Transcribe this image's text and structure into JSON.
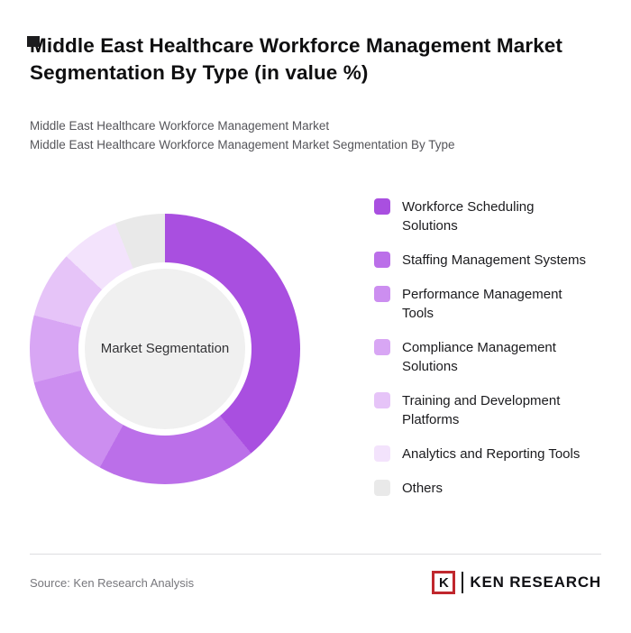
{
  "page": {
    "title": "Middle East Healthcare Workforce Management Market Segmentation By Type (in value %)",
    "subtitle1": "Middle East Healthcare Workforce Management Market",
    "subtitle2": "Middle East Healthcare Workforce Management Market Segmentation By Type",
    "source": "Source: Ken Research Analysis",
    "brand": {
      "logo_letter": "K",
      "name": "KEN RESEARCH",
      "accent_color": "#c0272d"
    }
  },
  "chart_data": {
    "type": "pie",
    "title": "Middle East Healthcare Workforce Management Market Segmentation By Type (in value %)",
    "unit": "value %",
    "center_label": "Market Segmentation",
    "legend_position": "right",
    "donut": true,
    "center_fill": "#f0f0f0",
    "segments": [
      {
        "label": "Workforce Scheduling Solutions",
        "value": 39,
        "color": "#a94fe0"
      },
      {
        "label": "Staffing Management Systems",
        "value": 19,
        "color": "#bb6fe9"
      },
      {
        "label": "Performance Management Tools",
        "value": 13,
        "color": "#cc8ef0"
      },
      {
        "label": "Compliance Management Solutions",
        "value": 8,
        "color": "#d8a6f4"
      },
      {
        "label": "Training and Development Platforms",
        "value": 8,
        "color": "#e6c4f8"
      },
      {
        "label": "Analytics and Reporting Tools",
        "value": 7,
        "color": "#f3e3fc"
      },
      {
        "label": "Others",
        "value": 6,
        "color": "#e9e9e9"
      }
    ]
  }
}
